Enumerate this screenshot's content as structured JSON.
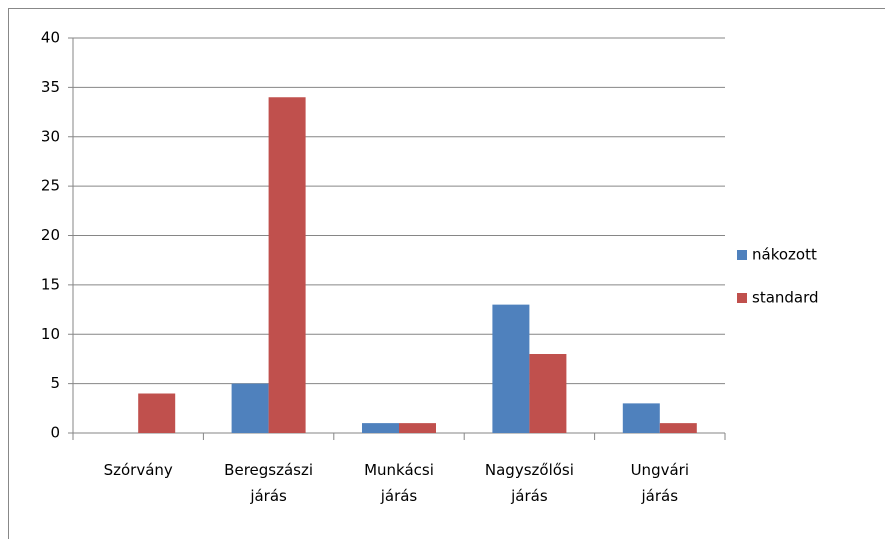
{
  "chart_data": {
    "type": "bar",
    "categories": [
      "Szórvány",
      "Beregszászi járás",
      "Munkácsi járás",
      "Nagyszőlősi járás",
      "Ungvári járás"
    ],
    "series": [
      {
        "name": "nákozott",
        "color": "#4f81bd",
        "values": [
          0,
          5,
          1,
          13,
          3
        ]
      },
      {
        "name": "standard",
        "color": "#c0504d",
        "values": [
          4,
          34,
          1,
          8,
          1
        ]
      }
    ],
    "ylim": [
      0,
      40
    ],
    "yticks": [
      0,
      5,
      10,
      15,
      20,
      25,
      30,
      35,
      40
    ],
    "grid": true,
    "legend": "right"
  }
}
